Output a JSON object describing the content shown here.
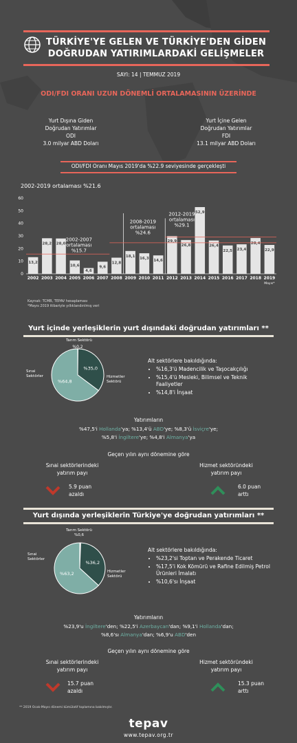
{
  "header": {
    "title_line1": "TÜRKİYE'YE GELEN VE TÜRKİYE'DEN GİDEN",
    "title_line2": "DOĞRUDAN YATIRIMLARDAKİ GELİŞMELER",
    "issue": "SAYI: 14 | TEMMUZ 2019"
  },
  "odi_fdi": {
    "headline": "ODI/FDI ORANI UZUN DÖNEMLİ ORTALAMASININ ÜZERİNDE",
    "left_l1": "Yurt Dışına Giden",
    "left_l2": "Doğrudan Yatırımlar",
    "left_l3": "ODI",
    "left_l4": "3.0 milyar ABD Doları",
    "right_l1": "Yurt İçine Gelen",
    "right_l2": "Doğrudan Yatırımlar",
    "right_l3": "FDI",
    "right_l4": "13.1 milyar ABD Doları",
    "ratio_banner": "ODI/FDI Oranı Mayıs 2019'da %22.9 seviyesinde gerçekleşti"
  },
  "chart_data": {
    "type": "bar",
    "title": "2002-2019 ortalaması %21.6",
    "categories": [
      "2002",
      "2003",
      "2004",
      "2005",
      "2006",
      "2007",
      "2008",
      "2009",
      "2010",
      "2011",
      "2012",
      "2013",
      "2014",
      "2015",
      "2016",
      "2017",
      "2018",
      "2019"
    ],
    "last_category_note": "Mayıs*",
    "values": [
      13.2,
      28.2,
      28.0,
      10.6,
      4.6,
      9.6,
      12.8,
      18.1,
      16.3,
      14.6,
      29.9,
      26.8,
      52.9,
      26.4,
      22.5,
      23.4,
      28.4,
      22.9
    ],
    "value_labels": [
      "13,2",
      "28,2",
      "28,0",
      "10,6",
      "4,6",
      "9,6",
      "12,8",
      "18,1",
      "16,3",
      "14,6",
      "29,9",
      "26,8",
      "52,9",
      "26,4",
      "22,5",
      "23,4",
      "28,4",
      "22,9"
    ],
    "yticks": [
      "0",
      "10",
      "20",
      "30",
      "40",
      "50",
      "60"
    ],
    "ylim": [
      0,
      60
    ],
    "bar_color": "#e5e5e5",
    "period_annotations": [
      {
        "text_l1": "2002-2007",
        "text_l2": "ortalaması",
        "text_l3": "%15.7"
      },
      {
        "text_l1": "2008-2019",
        "text_l2": "ortalaması",
        "text_l3": "%24.6"
      },
      {
        "text_l1": "2012-2019",
        "text_l2": "ortalaması",
        "text_l3": "%29.1"
      }
    ],
    "average_line_color": "#e8665a"
  },
  "sources": {
    "l1": "Kaynak: TCMB, TEPAV hesaplaması",
    "l2": "*Mayıs 2019 itibariyle yıllıklandırılmış veri"
  },
  "section1": {
    "heading": "Yurt içinde yerleşiklerin yurt dışındaki doğrudan yatırımları **",
    "pie": {
      "type": "pie",
      "labels": [
        "Tarım Sektörü",
        "Sınai Sektörler",
        "Hizmetler Sektörü"
      ],
      "values": [
        0.2,
        35.0,
        64.8
      ],
      "value_labels": [
        "%0,2",
        "%35,0",
        "%64,8"
      ],
      "colors": [
        "#c8c8c8",
        "#2f4f4a",
        "#7faea6"
      ]
    },
    "label_tarim": "Tarım Sektörü",
    "label_sinai_l1": "Sınai",
    "label_sinai_l2": "Sektörler",
    "label_hizmet_l1": "Hizmetler",
    "label_hizmet_l2": "Sektörü",
    "sub_title": "Alt sektörlere bakıldığında:",
    "bullets": [
      "%16,3'ü Madencilik ve Taşocakçılığı",
      "%15,4'ü Mesleki, Bilimsel ve Teknik Faaliyetler",
      "%14,8'i İnşaat"
    ],
    "invest_title": "Yatırımların",
    "invest_l1_a": "%47,5'i ",
    "invest_l1_b": "Hollanda",
    "invest_l1_c": "'ya; %13,4'ü ",
    "invest_l1_d": "ABD",
    "invest_l1_e": "'ye; %8,3'ü ",
    "invest_l1_f": "İsviçre",
    "invest_l1_g": "'ye;",
    "invest_l2_a": "%5,8'i ",
    "invest_l2_b": "İngiltere",
    "invest_l2_c": "'ye; %4,8'i ",
    "invest_l2_d": "Almanya",
    "invest_l2_e": "'ya",
    "compare": "Geçen yılın aynı dönemine göre",
    "left_l1": "Sınai sektörlerindeki",
    "left_l2": "yatırım payı",
    "left_val_l1": "5.9 puan",
    "left_val_l2": "azaldı",
    "right_l1": "Hizmet sektöründeki",
    "right_l2": "yatırım payı",
    "right_val_l1": "6.0 puan",
    "right_val_l2": "arttı"
  },
  "section2": {
    "heading": "Yurt dışında yerleşiklerin Türkiye'ye doğrudan yatırımları **",
    "pie": {
      "type": "pie",
      "labels": [
        "Tarım Sektörü",
        "Sınai Sektörler",
        "Hizmetler Sektörü"
      ],
      "values": [
        0.6,
        36.2,
        63.2
      ],
      "value_labels": [
        "%0,6",
        "%36,2",
        "%63,2"
      ],
      "colors": [
        "#c8c8c8",
        "#2f4f4a",
        "#7faea6"
      ]
    },
    "label_tarim": "Tarım Sektörü",
    "label_sinai_l1": "Sınai",
    "label_sinai_l2": "Sektörler",
    "label_hizmet_l1": "Hizmetler",
    "label_hizmet_l2": "Sektörü",
    "sub_title": "Alt sektörlere bakıldığında:",
    "bullets": [
      "%23,2'si Toptan ve Perakende Ticaret",
      "%17,5'i Kok Kömürü ve Rafine Edilmiş Petrol Ürünleri İmalatı",
      "%10,6'sı İnşaat"
    ],
    "invest_title": "Yatırımların",
    "invest_l1_a": "%23,9'u ",
    "invest_l1_b": "İngiltere",
    "invest_l1_c": "'den; %22,5'i ",
    "invest_l1_d": "Azerbaycan",
    "invest_l1_e": "'dan; %9,1'i ",
    "invest_l1_f": "Hollanda",
    "invest_l1_g": "'dan;",
    "invest_l2_a": "%8,6'sı ",
    "invest_l2_b": "Almanya",
    "invest_l2_c": "'dan; %6,9'u ",
    "invest_l2_d": "ABD",
    "invest_l2_e": "'den",
    "compare": "Geçen yılın aynı dönemine göre",
    "left_l1": "Sınai sektörlerindeki",
    "left_l2": "yatırım payı",
    "left_val_l1": "15.7 puan",
    "left_val_l2": "azaldı",
    "right_l1": "Hizmet sektöründeki",
    "right_l2": "yatırım payı",
    "right_val_l1": "15.3 puan",
    "right_val_l2": "arttı"
  },
  "footer": {
    "note": "** 2019 Ocak-Mayıs dönemi kümülatif toplamına bakılmıştır.",
    "brand": "tepav",
    "url": "www.tepav.org.tr"
  },
  "colors": {
    "background": "#4a4a4a",
    "accent_red": "#e8665a",
    "teal": "#6fb3a6",
    "up_arrow": "#2f8f5a",
    "down_arrow": "#c0392b"
  }
}
